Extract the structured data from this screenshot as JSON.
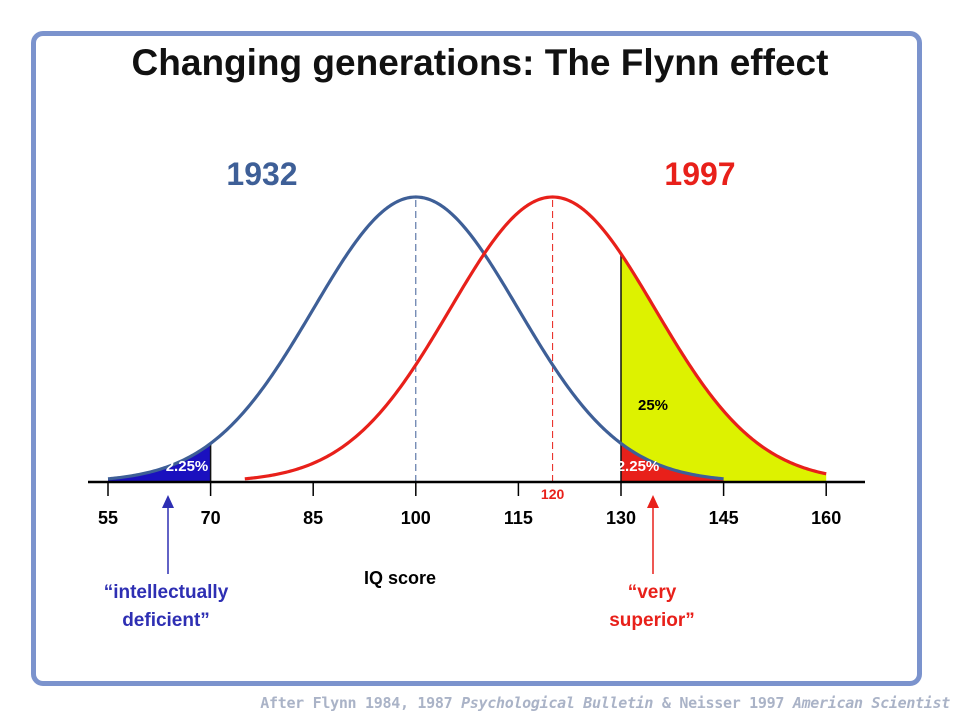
{
  "slide": {
    "title": "Changing generations: The Flynn effect",
    "citation": {
      "part1": "After Flynn 1984, 1987 ",
      "journal1": "Psychological Bulletin",
      "part2": " & Neisser 1997 ",
      "journal2": "American Scientist"
    },
    "colors": {
      "border": "#7b93cd",
      "citation": "#aab3c7"
    }
  },
  "chart_data": {
    "type": "area",
    "xlabel": "IQ score",
    "xticks": [
      55,
      70,
      85,
      100,
      115,
      130,
      145,
      160
    ],
    "series": [
      {
        "name": "1932",
        "mean": 100,
        "sd": 15,
        "x_range": [
          55,
          145
        ],
        "color": "#3e5f97"
      },
      {
        "name": "1997",
        "mean": 120,
        "sd": 15,
        "x_range": [
          75,
          160
        ],
        "color": "#e8201a"
      }
    ],
    "mean_marker": {
      "x": 120,
      "label": "120"
    },
    "shaded_regions": [
      {
        "name": "1932 below 70",
        "series": "1932",
        "from": 55,
        "to": 70,
        "label": "2.25%",
        "color": "#1a10bf"
      },
      {
        "name": "1997 above 130",
        "series": "1997",
        "from": 130,
        "to": 160,
        "label": "25%",
        "color": "#ddf200"
      },
      {
        "name": "1932 above 130",
        "series": "1932",
        "from": 130,
        "to": 145,
        "label": "2.25%",
        "color": "#e8201a"
      }
    ],
    "annotations": [
      {
        "text_line1": "“intellectually",
        "text_line2": "deficient”",
        "points_to": 70,
        "color": "#2e2fb3"
      },
      {
        "text_line1": "“very",
        "text_line2": "superior”",
        "points_to": 130,
        "color": "#e8201a"
      }
    ]
  }
}
